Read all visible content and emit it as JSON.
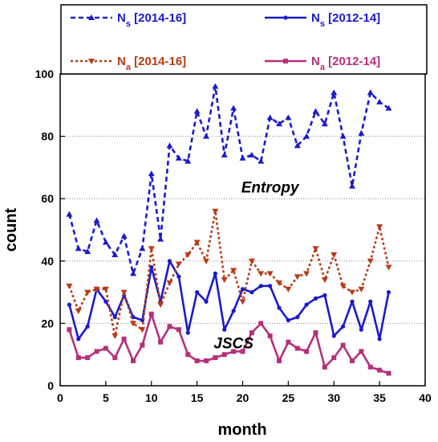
{
  "chart_data": {
    "type": "line",
    "xlabel": "month",
    "ylabel": "count",
    "xlim": [
      0,
      40
    ],
    "ylim": [
      0,
      100
    ],
    "xticks": [
      0,
      5,
      10,
      15,
      20,
      25,
      30,
      35,
      40
    ],
    "yticks": [
      0,
      20,
      40,
      60,
      80,
      100
    ],
    "grid": "horizontal dotted",
    "legend_position": "top",
    "annotations": [
      {
        "text": "Entropy",
        "x": 23,
        "y": 62
      },
      {
        "text": "JSCS",
        "x": 19,
        "y": 12
      }
    ],
    "series": [
      {
        "legend_main": "N",
        "legend_sub": "s",
        "legend_rest": " [2014-16]",
        "color": "#1a1acc",
        "dash": "dashed",
        "marker": "triangle-up",
        "x": [
          1,
          2,
          3,
          4,
          5,
          6,
          7,
          8,
          9,
          10,
          11,
          12,
          13,
          14,
          15,
          16,
          17,
          18,
          19,
          20,
          21,
          22,
          23,
          24,
          25,
          26,
          27,
          28,
          29,
          30,
          31,
          32,
          33,
          34,
          35,
          36
        ],
        "y": [
          55,
          44,
          43,
          53,
          46,
          42,
          48,
          36,
          44,
          68,
          47,
          77,
          73,
          72,
          88,
          80,
          96,
          74,
          89,
          73,
          74,
          72,
          86,
          84,
          86,
          77,
          80,
          88,
          84,
          94,
          80,
          64,
          81,
          94,
          91,
          89
        ]
      },
      {
        "legend_main": "N",
        "legend_sub": "s",
        "legend_rest": " [2012-14]",
        "color": "#1a1acc",
        "dash": "solid",
        "marker": "circle",
        "x": [
          1,
          2,
          3,
          4,
          5,
          6,
          7,
          8,
          9,
          10,
          11,
          12,
          13,
          14,
          15,
          16,
          17,
          18,
          19,
          20,
          21,
          22,
          23,
          24,
          25,
          26,
          27,
          28,
          29,
          30,
          31,
          32,
          33,
          34,
          35,
          36
        ],
        "y": [
          26,
          15,
          19,
          31,
          27,
          22,
          29,
          22,
          21,
          38,
          27,
          40,
          35,
          17,
          30,
          27,
          36,
          18,
          24,
          31,
          30,
          32,
          32,
          25,
          21,
          22,
          26,
          28,
          29,
          16,
          19,
          27,
          18,
          27,
          15,
          30
        ]
      },
      {
        "legend_main": "N",
        "legend_sub": "a",
        "legend_rest": " [2014-16]",
        "color": "#b83a16",
        "dash": "dotted",
        "marker": "triangle-down",
        "x": [
          1,
          2,
          3,
          4,
          5,
          6,
          7,
          8,
          9,
          10,
          11,
          12,
          13,
          14,
          15,
          16,
          17,
          18,
          19,
          20,
          21,
          22,
          23,
          24,
          25,
          26,
          27,
          28,
          29,
          30,
          31,
          32,
          33,
          34,
          35,
          36
        ],
        "y": [
          32,
          24,
          30,
          31,
          31,
          16,
          30,
          20,
          18,
          44,
          26,
          33,
          39,
          42,
          46,
          40,
          56,
          34,
          37,
          27,
          40,
          36,
          36,
          33,
          31,
          35,
          36,
          44,
          34,
          42,
          32,
          30,
          31,
          40,
          51,
          38
        ]
      },
      {
        "legend_main": "N",
        "legend_sub": "a",
        "legend_rest": " [2012-14]",
        "color": "#b5307a",
        "dash": "solid",
        "marker": "square",
        "x": [
          1,
          2,
          3,
          4,
          5,
          6,
          7,
          8,
          9,
          10,
          11,
          12,
          13,
          14,
          15,
          16,
          17,
          18,
          19,
          20,
          21,
          22,
          23,
          24,
          25,
          26,
          27,
          28,
          29,
          30,
          31,
          32,
          33,
          34,
          35,
          36
        ],
        "y": [
          18,
          9,
          9,
          11,
          12,
          9,
          15,
          8,
          13,
          23,
          14,
          19,
          18,
          10,
          8,
          8,
          9,
          10,
          11,
          11,
          17,
          20,
          16,
          8,
          14,
          12,
          11,
          17,
          6,
          9,
          13,
          8,
          11,
          6,
          5,
          4
        ]
      }
    ]
  }
}
